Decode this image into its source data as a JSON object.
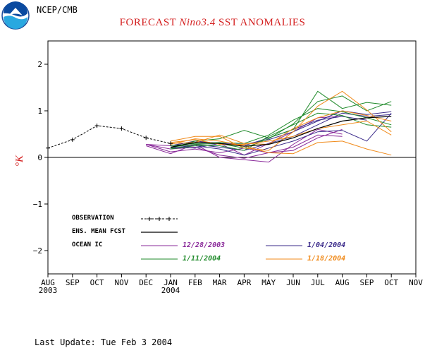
{
  "header": {
    "org": "NCEP/CMB",
    "logo": "noaa-logo-icon"
  },
  "chart_data": {
    "type": "line",
    "title_prefix": "FORECAST ",
    "title_italic": "Nino3.4",
    "title_suffix": " SST ANOMALIES",
    "ylabel": "°K",
    "ylim": [
      -2.5,
      2.5
    ],
    "yticks": [
      2,
      1,
      0,
      -1,
      -2
    ],
    "ytick_labels": [
      "2",
      "1",
      "0",
      "−1",
      "−2"
    ],
    "x_labels": [
      "AUG",
      "SEP",
      "OCT",
      "NOV",
      "DEC",
      "JAN",
      "FEB",
      "MAR",
      "APR",
      "MAY",
      "JUN",
      "JUL",
      "AUG",
      "SEP",
      "OCT",
      "NOV"
    ],
    "x_year_labels": [
      {
        "index": 0,
        "text": "2003"
      },
      {
        "index": 5,
        "text": "2004"
      }
    ],
    "observation": {
      "x": [
        0,
        1,
        2,
        3,
        4,
        5
      ],
      "y": [
        0.2,
        0.38,
        0.68,
        0.62,
        0.42,
        0.3
      ]
    },
    "ensemble_mean": {
      "x": [
        5,
        6,
        7,
        8,
        9,
        10,
        11,
        12,
        13,
        14
      ],
      "y": [
        0.22,
        0.32,
        0.3,
        0.24,
        0.28,
        0.42,
        0.62,
        0.78,
        0.85,
        0.88
      ]
    },
    "members": [
      {
        "group": 0,
        "x": [
          4,
          5,
          6,
          7,
          8,
          9,
          10,
          11,
          12
        ],
        "y": [
          0.28,
          0.18,
          0.22,
          0.05,
          -0.02,
          0.1,
          0.22,
          0.48,
          0.45
        ]
      },
      {
        "group": 0,
        "x": [
          4,
          5,
          6,
          7,
          8,
          9,
          10,
          11,
          12
        ],
        "y": [
          0.25,
          0.08,
          0.28,
          0.0,
          -0.05,
          -0.1,
          0.28,
          0.6,
          0.5
        ]
      },
      {
        "group": 0,
        "x": [
          4,
          5,
          6,
          7,
          8,
          9,
          10,
          11,
          12
        ],
        "y": [
          0.28,
          0.12,
          0.18,
          0.1,
          0.2,
          0.1,
          0.15,
          0.42,
          0.6
        ]
      },
      {
        "group": 0,
        "x": [
          4,
          5,
          6,
          7,
          8,
          9,
          10,
          11,
          12
        ],
        "y": [
          0.28,
          0.25,
          0.35,
          0.3,
          0.05,
          0.3,
          0.55,
          0.85,
          0.88
        ]
      },
      {
        "group": 1,
        "x": [
          5,
          6,
          7,
          8,
          9,
          10,
          11,
          12,
          13,
          14
        ],
        "y": [
          0.25,
          0.35,
          0.3,
          0.28,
          0.38,
          0.55,
          0.78,
          1.0,
          0.92,
          0.98
        ]
      },
      {
        "group": 1,
        "x": [
          5,
          6,
          7,
          8,
          9,
          10,
          11,
          12,
          13,
          14
        ],
        "y": [
          0.18,
          0.28,
          0.22,
          0.15,
          0.3,
          0.45,
          0.7,
          0.95,
          0.88,
          0.92
        ]
      },
      {
        "group": 1,
        "x": [
          5,
          6,
          7,
          8,
          9,
          10,
          11,
          12,
          13,
          14
        ],
        "y": [
          0.2,
          0.25,
          0.18,
          0.05,
          0.2,
          0.35,
          0.55,
          0.58,
          0.35,
          0.95
        ]
      },
      {
        "group": 1,
        "x": [
          5,
          6,
          7,
          8,
          9,
          10,
          11,
          12,
          13
        ],
        "y": [
          0.22,
          0.2,
          0.3,
          0.25,
          0.42,
          0.6,
          0.8,
          0.88,
          0.8
        ]
      },
      {
        "group": 2,
        "x": [
          5,
          6,
          7,
          8,
          9,
          10,
          11,
          12,
          13,
          14
        ],
        "y": [
          0.2,
          0.35,
          0.4,
          0.58,
          0.42,
          0.6,
          1.42,
          1.05,
          1.18,
          1.12
        ]
      },
      {
        "group": 2,
        "x": [
          5,
          6,
          7,
          8,
          9,
          10,
          11,
          12,
          13,
          14
        ],
        "y": [
          0.22,
          0.28,
          0.3,
          0.2,
          0.4,
          0.72,
          1.2,
          1.32,
          1.0,
          1.2
        ]
      },
      {
        "group": 2,
        "x": [
          5,
          6,
          7,
          8,
          9,
          10,
          11,
          12,
          13,
          14
        ],
        "y": [
          0.25,
          0.3,
          0.32,
          0.3,
          0.48,
          0.8,
          1.05,
          0.98,
          0.85,
          0.7
        ]
      },
      {
        "group": 2,
        "x": [
          5,
          6,
          7,
          8,
          9,
          10,
          11,
          12,
          13,
          14
        ],
        "y": [
          0.18,
          0.25,
          0.25,
          0.15,
          0.45,
          0.7,
          0.95,
          0.9,
          0.7,
          0.65
        ]
      },
      {
        "group": 3,
        "x": [
          5,
          6,
          7,
          8,
          9,
          10,
          11,
          12,
          13,
          14
        ],
        "y": [
          0.35,
          0.45,
          0.45,
          0.2,
          0.15,
          0.55,
          1.1,
          1.42,
          1.02,
          0.55
        ]
      },
      {
        "group": 3,
        "x": [
          5,
          6,
          7,
          8,
          9,
          10,
          11,
          12,
          13,
          14
        ],
        "y": [
          0.3,
          0.32,
          0.48,
          0.3,
          0.28,
          0.62,
          0.85,
          1.0,
          0.9,
          0.78
        ]
      },
      {
        "group": 3,
        "x": [
          5,
          6,
          7,
          8,
          9,
          10,
          11,
          12,
          13,
          14
        ],
        "y": [
          0.28,
          0.4,
          0.35,
          0.25,
          0.1,
          0.08,
          0.32,
          0.35,
          0.18,
          0.05
        ]
      },
      {
        "group": 3,
        "x": [
          5,
          6,
          7,
          8,
          9,
          10,
          11,
          12,
          13,
          14
        ],
        "y": [
          0.32,
          0.38,
          0.28,
          0.28,
          0.35,
          0.45,
          0.62,
          0.7,
          0.78,
          0.48
        ]
      }
    ],
    "legend": {
      "observation_label": "OBSERVATION",
      "ensemble_label": "ENS. MEAN FCST",
      "ocean_ic_label": "OCEAN IC",
      "ic_dates": [
        "12/28/2003",
        "1/04/2004",
        "1/11/2004",
        "1/18/2004"
      ]
    },
    "colors": {
      "group0": "#8a2a9a",
      "group1": "#3a2a8a",
      "group2": "#1f8a2a",
      "group3": "#f08a1a",
      "title": "#d42020",
      "axis": "#000000"
    }
  },
  "footer": {
    "last_update": "Last Update: Tue Feb 3 2004"
  }
}
